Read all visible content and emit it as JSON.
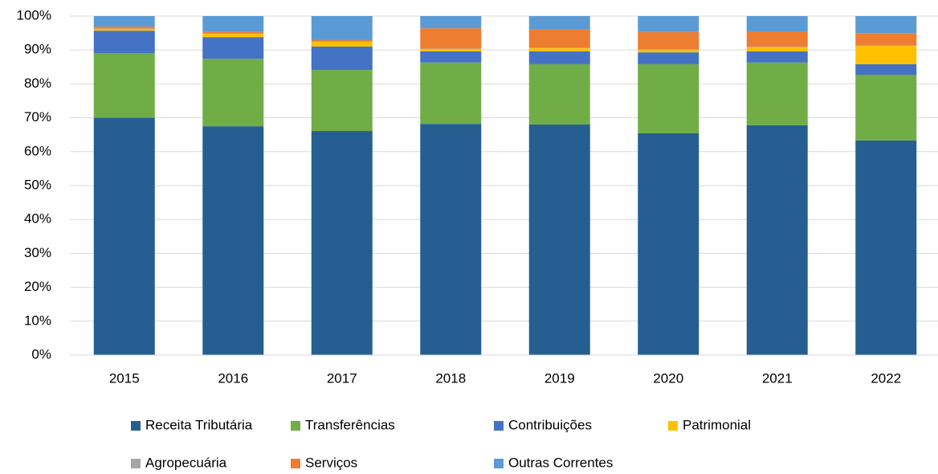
{
  "chart_data": {
    "type": "stacked_bar",
    "categories": [
      "2015",
      "2016",
      "2017",
      "2018",
      "2019",
      "2020",
      "2021",
      "2022"
    ],
    "series": [
      {
        "name": "Receita Tributária",
        "color": "#255e91",
        "values": [
          70.0,
          67.5,
          66.1,
          68.2,
          68.0,
          65.4,
          67.8,
          63.3
        ]
      },
      {
        "name": "Transferências",
        "color": "#70ad47",
        "values": [
          19.1,
          19.9,
          18.0,
          18.1,
          17.8,
          20.4,
          18.5,
          19.4
        ]
      },
      {
        "name": "Contribuições",
        "color": "#4472c4",
        "values": [
          6.6,
          6.4,
          6.9,
          3.3,
          3.8,
          3.5,
          3.3,
          3.1
        ]
      },
      {
        "name": "Patrimonial",
        "color": "#ffc000",
        "values": [
          0.5,
          1.0,
          1.4,
          0.7,
          0.9,
          0.7,
          1.2,
          5.4
        ]
      },
      {
        "name": "Agropecuária",
        "color": "#a5a5a5",
        "values": [
          0.1,
          0.1,
          0.1,
          0.1,
          0.1,
          0.1,
          0.1,
          0.1
        ]
      },
      {
        "name": "Serviços",
        "color": "#ed7d31",
        "values": [
          0.6,
          0.4,
          0.4,
          6.0,
          5.4,
          5.2,
          4.6,
          3.7
        ]
      },
      {
        "name": "Outras Correntes",
        "color": "#5b9bd5",
        "values": [
          3.1,
          4.7,
          7.1,
          3.6,
          4.0,
          4.7,
          4.5,
          5.0
        ]
      }
    ],
    "ylim": [
      0,
      100
    ],
    "yticks": [
      {
        "value": 0,
        "label": "0%"
      },
      {
        "value": 10,
        "label": "10%"
      },
      {
        "value": 20,
        "label": "20%"
      },
      {
        "value": 30,
        "label": "30%"
      },
      {
        "value": 40,
        "label": "40%"
      },
      {
        "value": 50,
        "label": "50%"
      },
      {
        "value": 60,
        "label": "60%"
      },
      {
        "value": 70,
        "label": "70%"
      },
      {
        "value": 80,
        "label": "80%"
      },
      {
        "value": 90,
        "label": "90%"
      },
      {
        "value": 100,
        "label": "100%"
      }
    ],
    "grid": true,
    "legend": "bottom"
  }
}
